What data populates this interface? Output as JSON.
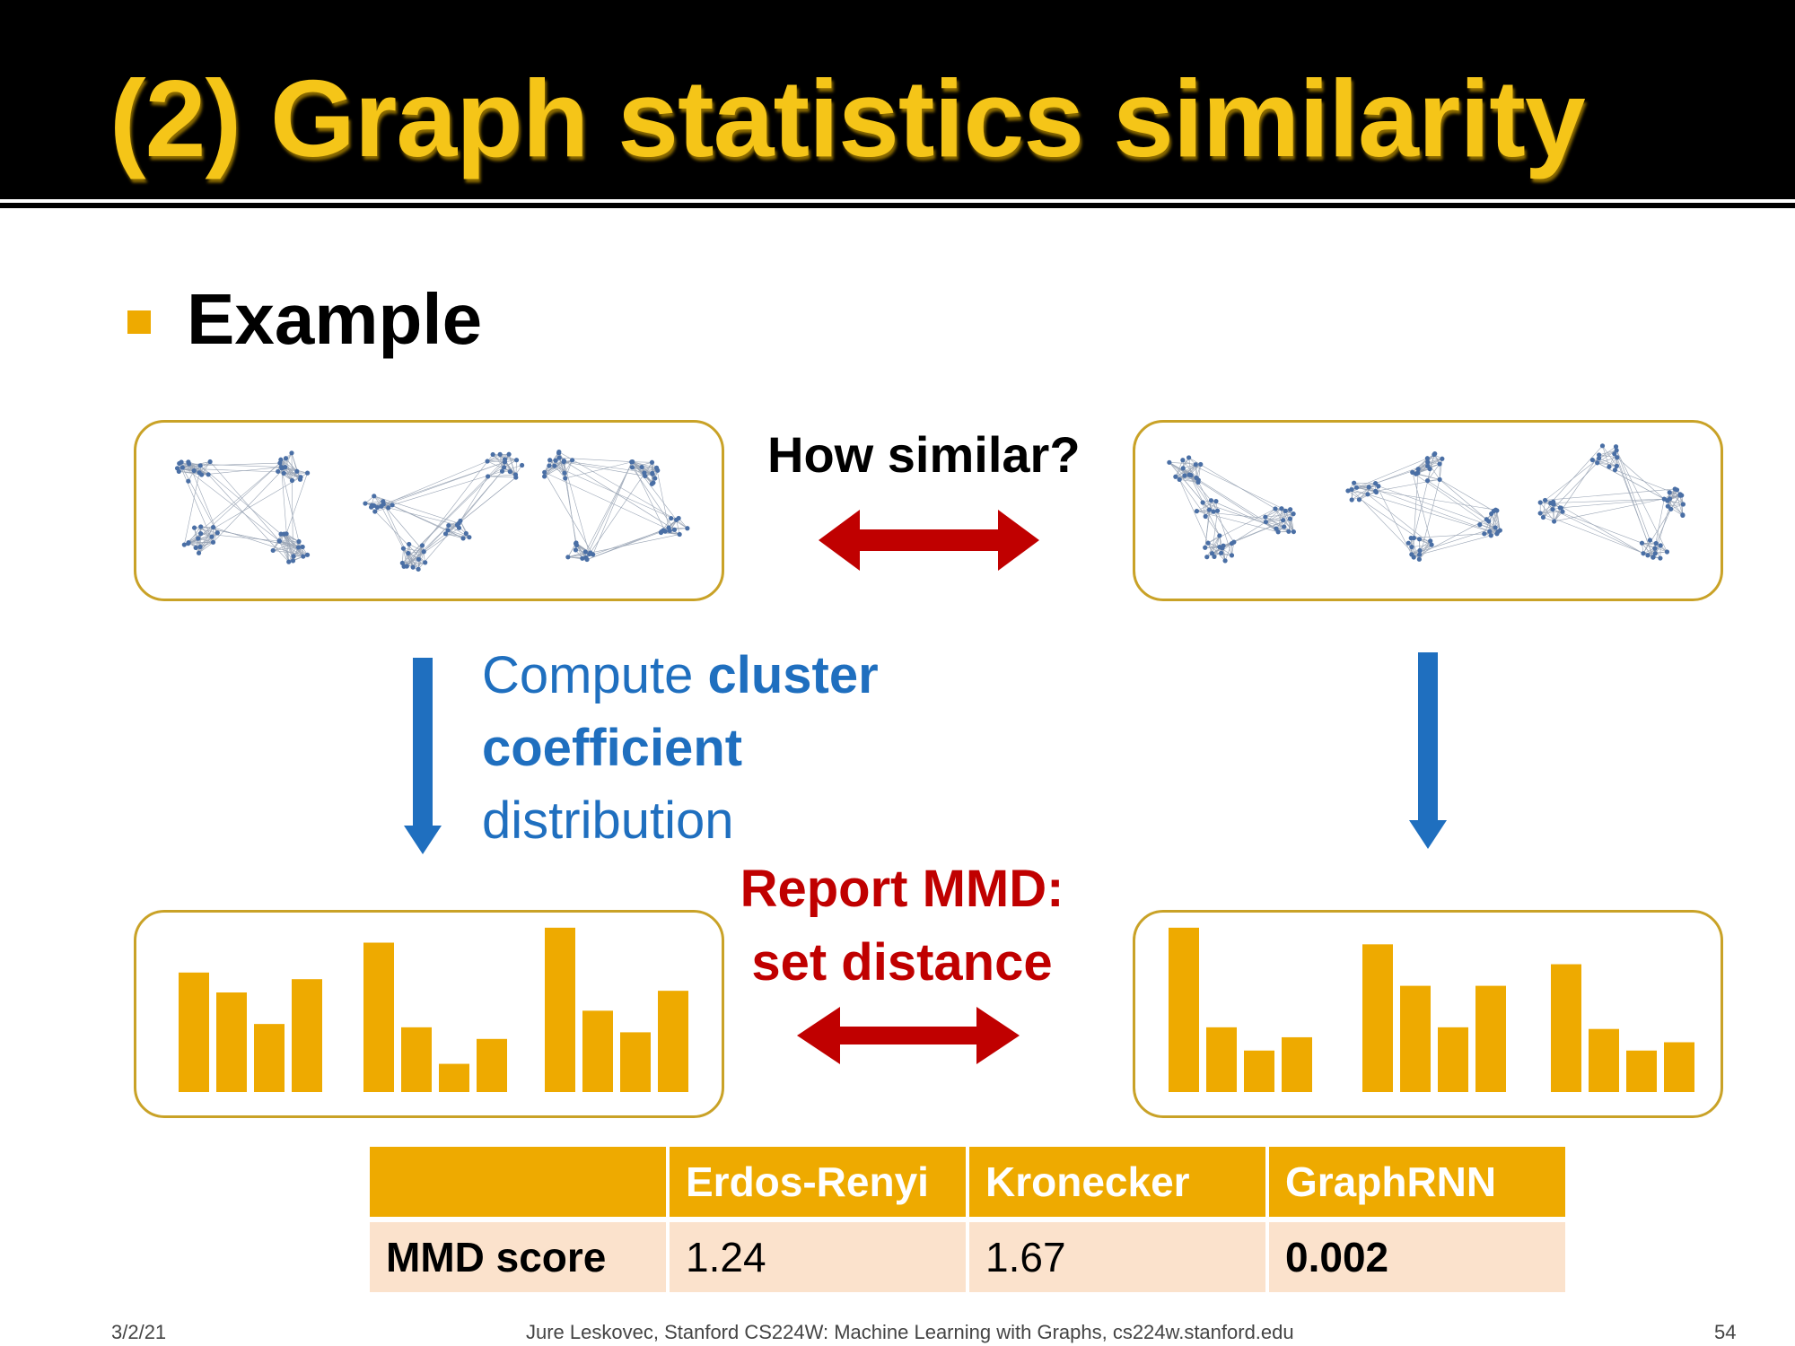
{
  "title": "(2) Graph statistics similarity",
  "bullet": "Example",
  "how_similar": "How similar?",
  "compute": {
    "prefix": "Compute ",
    "bold1": "cluster",
    "bold2": "coefficient",
    "suffix": "distribution"
  },
  "report": {
    "line1": "Report MMD:",
    "line2": "set distance"
  },
  "colors": {
    "accent": "#eeaa00",
    "title": "#f5c518",
    "blue": "#1f6fbf",
    "red": "#c00000",
    "panel_border": "#c9a227",
    "node": "#4a6fa5"
  },
  "histograms": {
    "left": [
      [
        0.72,
        0.6,
        0.41,
        0.68
      ],
      [
        0.9,
        0.39,
        0.17,
        0.32
      ],
      [
        0.99,
        0.49,
        0.36,
        0.61
      ]
    ],
    "right": [
      [
        0.99,
        0.39,
        0.25,
        0.33
      ],
      [
        0.89,
        0.64,
        0.39,
        0.64
      ],
      [
        0.77,
        0.38,
        0.25,
        0.3
      ]
    ]
  },
  "table": {
    "headers": [
      "",
      "Erdos-Renyi",
      "Kronecker",
      "GraphRNN"
    ],
    "row_label": "MMD score",
    "values": [
      "1.24",
      "1.67",
      "0.002"
    ]
  },
  "footer": {
    "date": "3/2/21",
    "credit": "Jure Leskovec, Stanford CS224W: Machine Learning with Graphs, cs224w.stanford.edu",
    "page": "54"
  }
}
